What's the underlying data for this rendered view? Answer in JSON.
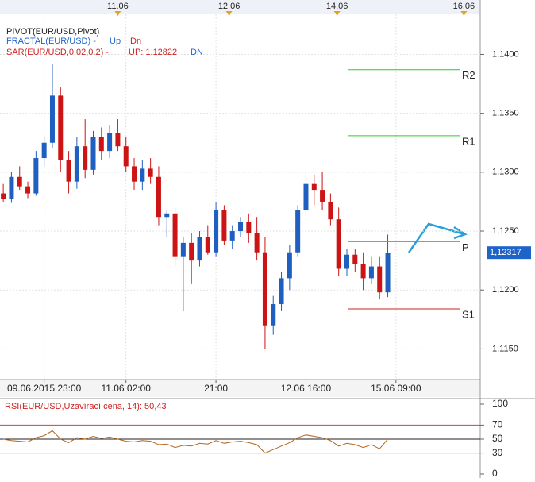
{
  "chart_data": [
    {
      "type": "candlestick",
      "indicators": [
        "PIVOT(EUR/USD,Pivot)",
        "FRACTAL(EUR/USD) -",
        "Up",
        "Dn",
        "SAR(EUR/USD,0.02,0.2) -",
        "UP: 1,12822",
        "DN"
      ],
      "x": [
        0,
        1,
        2,
        3,
        4,
        5,
        6,
        7,
        8,
        9,
        10,
        11,
        12,
        13,
        14,
        15,
        16,
        17,
        18,
        19,
        20,
        21,
        22,
        23,
        24,
        25,
        26,
        27,
        28,
        29,
        30,
        31,
        32,
        33,
        34,
        35,
        36,
        37,
        38,
        39,
        40,
        41,
        42,
        43,
        44,
        45,
        46,
        47
      ],
      "open": [
        1.1282,
        1.1277,
        1.1296,
        1.1288,
        1.1282,
        1.1312,
        1.1325,
        1.1365,
        1.131,
        1.1292,
        1.1322,
        1.1302,
        1.133,
        1.1318,
        1.1333,
        1.1322,
        1.1305,
        1.1292,
        1.1303,
        1.1296,
        1.1262,
        1.1265,
        1.1228,
        1.124,
        1.1225,
        1.1245,
        1.1232,
        1.1268,
        1.1242,
        1.125,
        1.1258,
        1.1248,
        1.1232,
        1.117,
        1.1188,
        1.121,
        1.1232,
        1.1268,
        1.129,
        1.1285,
        1.1275,
        1.126,
        1.1218,
        1.123,
        1.1222,
        1.121,
        1.122,
        1.1198
      ],
      "high": [
        1.129,
        1.13,
        1.1305,
        1.1292,
        1.1318,
        1.133,
        1.1392,
        1.1372,
        1.1318,
        1.133,
        1.1345,
        1.1335,
        1.1338,
        1.134,
        1.1345,
        1.133,
        1.1312,
        1.131,
        1.1312,
        1.1305,
        1.1268,
        1.127,
        1.1245,
        1.1248,
        1.125,
        1.1255,
        1.1275,
        1.1272,
        1.1255,
        1.1262,
        1.1265,
        1.1262,
        1.1245,
        1.1195,
        1.1215,
        1.1238,
        1.1272,
        1.1302,
        1.1298,
        1.13,
        1.1282,
        1.127,
        1.1235,
        1.1235,
        1.1232,
        1.1228,
        1.1228,
        1.1247
      ],
      "low": [
        1.1275,
        1.1274,
        1.1285,
        1.1278,
        1.128,
        1.1305,
        1.132,
        1.13,
        1.1282,
        1.1286,
        1.1295,
        1.1298,
        1.131,
        1.1312,
        1.1318,
        1.13,
        1.1285,
        1.1285,
        1.129,
        1.1255,
        1.1245,
        1.122,
        1.1182,
        1.1205,
        1.122,
        1.123,
        1.1228,
        1.1238,
        1.1235,
        1.1245,
        1.124,
        1.1225,
        1.115,
        1.1162,
        1.1182,
        1.12,
        1.1228,
        1.1262,
        1.1272,
        1.1268,
        1.1255,
        1.1212,
        1.1212,
        1.1215,
        1.12,
        1.1205,
        1.1192,
        1.1194
      ],
      "close": [
        1.1277,
        1.1296,
        1.1288,
        1.1282,
        1.1312,
        1.1325,
        1.1365,
        1.131,
        1.1292,
        1.1322,
        1.1302,
        1.133,
        1.1318,
        1.1333,
        1.1322,
        1.1305,
        1.1292,
        1.1303,
        1.1296,
        1.1262,
        1.1265,
        1.1228,
        1.124,
        1.1225,
        1.1245,
        1.1232,
        1.1268,
        1.1242,
        1.125,
        1.1258,
        1.1248,
        1.1232,
        1.117,
        1.1188,
        1.121,
        1.1232,
        1.1268,
        1.129,
        1.1285,
        1.1275,
        1.126,
        1.1218,
        1.123,
        1.1222,
        1.121,
        1.122,
        1.1198,
        1.12317
      ],
      "up_color": "#1f5fbf",
      "down_color": "#cc1414",
      "last_price": {
        "value": 1.12317,
        "label": "1,12317"
      },
      "pivots": [
        {
          "name": "R2",
          "value": 1.1387,
          "color": "#2ecc2e"
        },
        {
          "name": "R1",
          "value": 1.1331,
          "color": "#2ecc2e"
        },
        {
          "name": "P",
          "value": 1.1241,
          "color": "#888888"
        },
        {
          "name": "S1",
          "value": 1.1184,
          "color": "#cc2222"
        }
      ],
      "xlim": [
        -0.4,
        58.3
      ],
      "ylim": [
        1.1124,
        1.1434
      ],
      "yticks": [
        {
          "value": 1.115,
          "label": "1,1150"
        },
        {
          "value": 1.12,
          "label": "1,1200"
        },
        {
          "value": 1.125,
          "label": "1,1250"
        },
        {
          "value": 1.13,
          "label": "1,1300"
        },
        {
          "value": 1.135,
          "label": "1,1350"
        },
        {
          "value": 1.14,
          "label": "1,1400"
        }
      ],
      "xticks": [
        {
          "value": 5,
          "label": "09.06.2015 23:00"
        },
        {
          "value": 15,
          "label": "11.06 02:00"
        },
        {
          "value": 26,
          "label": "21:00"
        },
        {
          "value": 37,
          "label": "12.06 16:00"
        },
        {
          "value": 48,
          "label": "15.06 09:00"
        }
      ],
      "top_xticks": [
        {
          "value": 14,
          "label": "11.06"
        },
        {
          "value": 27.6,
          "label": "12.06"
        },
        {
          "value": 40.8,
          "label": "14.06"
        },
        {
          "value": 56.3,
          "label": "16.06"
        }
      ],
      "grid": true
    },
    {
      "type": "line",
      "title": "RSI(EUR/USD,Uzavírací cena, 14): 50,43",
      "color": "#b5651d",
      "values": [
        50,
        48,
        47,
        46,
        52,
        55,
        62,
        50,
        45,
        52,
        50,
        54,
        51,
        53,
        50,
        47,
        46,
        48,
        47,
        42,
        43,
        38,
        41,
        40,
        44,
        43,
        48,
        44,
        46,
        47,
        45,
        42,
        30,
        35,
        40,
        45,
        52,
        56,
        54,
        52,
        48,
        40,
        44,
        42,
        38,
        42,
        36,
        50
      ],
      "ylim": [
        0,
        100
      ],
      "yticks": [
        0,
        30,
        50,
        70,
        100
      ],
      "levels": [
        30,
        50,
        70
      ]
    }
  ]
}
